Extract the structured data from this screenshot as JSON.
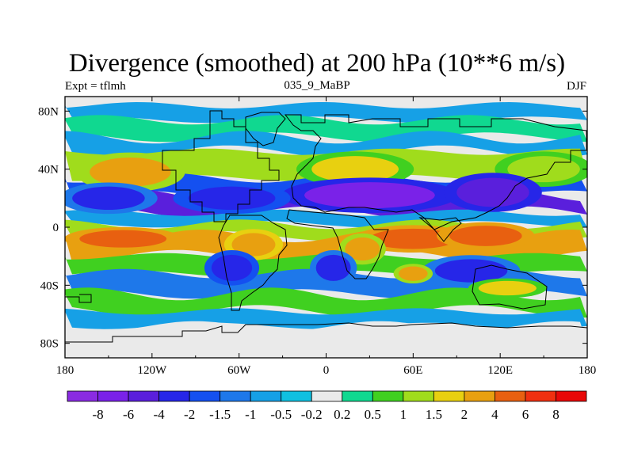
{
  "chart_data": {
    "type": "heatmap",
    "title": "Divergence (smoothed) at 200 hPa (10**6 m/s)",
    "left_string": "Expt = tflmh",
    "center_string": "035_9_MaBP",
    "right_string": "DJF",
    "x_range": [
      -180,
      180
    ],
    "y_range": [
      -90,
      90
    ],
    "x_ticks": [
      {
        "value": -180,
        "label": "180"
      },
      {
        "value": -120,
        "label": "120W"
      },
      {
        "value": -60,
        "label": "60W"
      },
      {
        "value": 0,
        "label": "0"
      },
      {
        "value": 60,
        "label": "60E"
      },
      {
        "value": 120,
        "label": "120E"
      },
      {
        "value": 180,
        "label": "180"
      }
    ],
    "y_ticks": [
      {
        "value": 80,
        "label": "80N"
      },
      {
        "value": 40,
        "label": "40N"
      },
      {
        "value": 0,
        "label": "0"
      },
      {
        "value": -40,
        "label": "40S"
      },
      {
        "value": -80,
        "label": "80S"
      }
    ],
    "colorbar": {
      "labels": [
        "-8",
        "-6",
        "-4",
        "-2",
        "-1.5",
        "-1",
        "-0.5",
        "-0.2",
        "0.2",
        "0.5",
        "1",
        "1.5",
        "2",
        "4",
        "6",
        "8"
      ],
      "colors": [
        "#8a2be2",
        "#7a22e8",
        "#5a1fdc",
        "#2626e8",
        "#1450f0",
        "#1e78ea",
        "#16a0e6",
        "#10c0e0",
        "#eaeaea",
        "#10d890",
        "#40d020",
        "#a0dc1c",
        "#e8d010",
        "#e8a010",
        "#e86010",
        "#f03010",
        "#e80808"
      ]
    },
    "bands": [
      {
        "lat_from": 84,
        "lat_to": 74,
        "value": -0.6
      },
      {
        "lat_from": 74,
        "lat_to": 62,
        "value": 0.3
      },
      {
        "lat_from": 62,
        "lat_to": 52,
        "value": -0.8
      },
      {
        "lat_from": 52,
        "lat_to": 34,
        "value": 1.2
      },
      {
        "lat_from": 34,
        "lat_to": 22,
        "value": -1.8
      },
      {
        "lat_from": 22,
        "lat_to": 10,
        "value": -4.5
      },
      {
        "lat_from": 10,
        "lat_to": 2,
        "value": -0.7
      },
      {
        "lat_from": 2,
        "lat_to": -6,
        "value": 1.3
      },
      {
        "lat_from": -6,
        "lat_to": -20,
        "value": 3.5
      },
      {
        "lat_from": -20,
        "lat_to": -32,
        "value": 0.8
      },
      {
        "lat_from": -32,
        "lat_to": -46,
        "value": -1.3
      },
      {
        "lat_from": -46,
        "lat_to": -58,
        "value": 0.7
      },
      {
        "lat_from": -58,
        "lat_to": -68,
        "value": -0.6
      },
      {
        "lat_from": -68,
        "lat_to": -84,
        "value": 0.0
      }
    ],
    "blobs": [
      {
        "lon": -135,
        "lat": 38,
        "rx_deg": 28,
        "ry_deg": 10,
        "value": 2.5
      },
      {
        "lon": 20,
        "lat": 40,
        "rx_deg": 30,
        "ry_deg": 9,
        "value": 1.5
      },
      {
        "lon": 150,
        "lat": 40,
        "rx_deg": 25,
        "ry_deg": 9,
        "value": 1.2
      },
      {
        "lon": 30,
        "lat": 22,
        "rx_deg": 45,
        "ry_deg": 9,
        "value": -6.5
      },
      {
        "lon": 115,
        "lat": 24,
        "rx_deg": 25,
        "ry_deg": 10,
        "value": -6.0
      },
      {
        "lon": -65,
        "lat": 20,
        "rx_deg": 30,
        "ry_deg": 8,
        "value": -3.5
      },
      {
        "lon": -150,
        "lat": 20,
        "rx_deg": 25,
        "ry_deg": 8,
        "value": -2.5
      },
      {
        "lon": -140,
        "lat": -8,
        "rx_deg": 30,
        "ry_deg": 6,
        "value": 4.5
      },
      {
        "lon": 60,
        "lat": -8,
        "rx_deg": 30,
        "ry_deg": 7,
        "value": 4.5
      },
      {
        "lon": 110,
        "lat": -6,
        "rx_deg": 25,
        "ry_deg": 7,
        "value": 4.0
      },
      {
        "lon": -50,
        "lat": -12,
        "rx_deg": 15,
        "ry_deg": 8,
        "value": 3.5
      },
      {
        "lon": 25,
        "lat": -15,
        "rx_deg": 12,
        "ry_deg": 8,
        "value": 2.5
      },
      {
        "lon": -65,
        "lat": -28,
        "rx_deg": 14,
        "ry_deg": 9,
        "value": -3.0
      },
      {
        "lon": 5,
        "lat": -28,
        "rx_deg": 12,
        "ry_deg": 9,
        "value": -2.5
      },
      {
        "lon": 100,
        "lat": -30,
        "rx_deg": 25,
        "ry_deg": 8,
        "value": -2.5
      },
      {
        "lon": 60,
        "lat": -32,
        "rx_deg": 10,
        "ry_deg": 5,
        "value": 2.5
      },
      {
        "lon": 125,
        "lat": -42,
        "rx_deg": 20,
        "ry_deg": 5,
        "value": 1.5
      }
    ]
  }
}
